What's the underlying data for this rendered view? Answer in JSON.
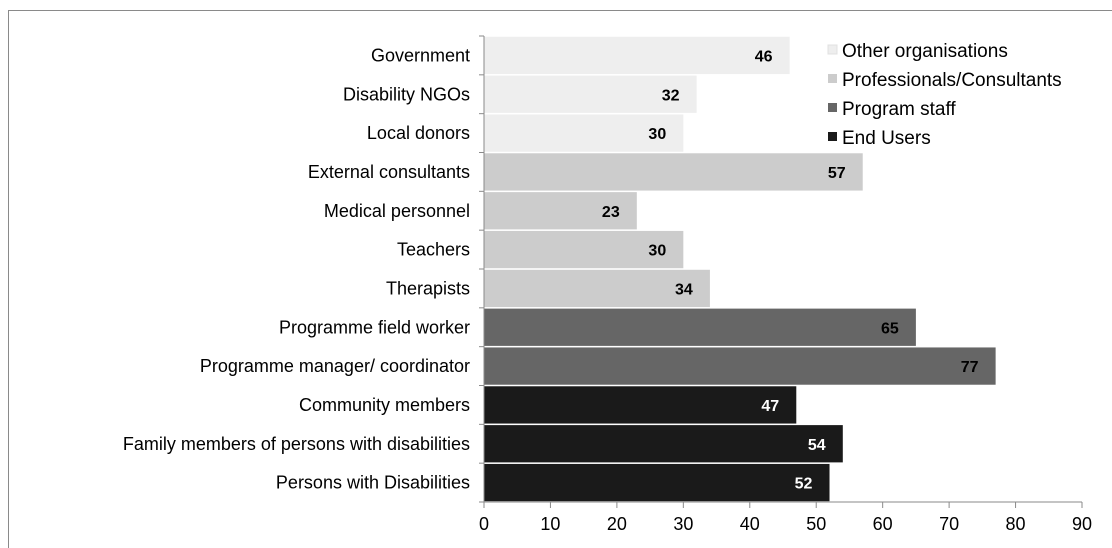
{
  "chart_data": {
    "type": "bar",
    "orientation": "horizontal",
    "categories": [
      "Government",
      "Disability NGOs",
      "Local donors",
      "External consultants",
      "Medical personnel",
      "Teachers",
      "Therapists",
      "Programme field worker",
      "Programme manager/ coordinator",
      "Community members",
      "Family members of persons with disabilities",
      "Persons with Disabilities"
    ],
    "values": [
      46,
      32,
      30,
      57,
      23,
      30,
      34,
      65,
      77,
      47,
      54,
      52
    ],
    "groups": [
      "Other organisations",
      "Other organisations",
      "Other organisations",
      "Professionals/Consultants",
      "Professionals/Consultants",
      "Professionals/Consultants",
      "Professionals/Consultants",
      "Program staff",
      "Program staff",
      "End Users",
      "End Users",
      "End Users"
    ],
    "series": [
      {
        "name": "Other organisations",
        "color": "#eeeeee",
        "label_color": "#000000"
      },
      {
        "name": "Professionals/Consultants",
        "color": "#cccccc",
        "label_color": "#000000"
      },
      {
        "name": "Program staff",
        "color": "#666666",
        "label_color": "#000000"
      },
      {
        "name": "End Users",
        "color": "#1a1a1a",
        "label_color": "#ffffff"
      }
    ],
    "xlim": [
      0,
      90
    ],
    "xticks": [
      0,
      10,
      20,
      30,
      40,
      50,
      60,
      70,
      80,
      90
    ],
    "grid": false,
    "legend_position": "top-right",
    "title": "",
    "xlabel": "",
    "ylabel": ""
  }
}
